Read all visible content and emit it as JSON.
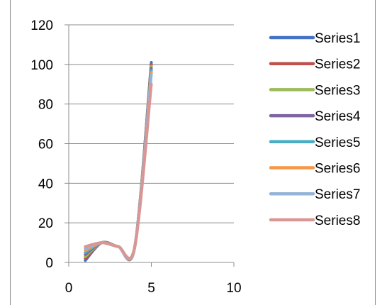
{
  "page_title_fragment": "",
  "chart_data": {
    "type": "scatter",
    "title": "",
    "xlabel": "",
    "ylabel": "",
    "xlim": [
      0,
      10
    ],
    "ylim": [
      0,
      120
    ],
    "xticks": [
      "0",
      "5",
      "10"
    ],
    "yticks": [
      "0",
      "20",
      "40",
      "60",
      "80",
      "100",
      "120"
    ],
    "grid": "horizontal",
    "legend": "right",
    "x": [
      1,
      2,
      3,
      4,
      5
    ],
    "series": [
      {
        "name": "Series1",
        "color": "#4472c4",
        "values": [
          1,
          10,
          8,
          8,
          101
        ]
      },
      {
        "name": "Series2",
        "color": "#c0504d",
        "values": [
          2,
          10,
          8,
          8,
          100
        ]
      },
      {
        "name": "Series3",
        "color": "#9bbb59",
        "values": [
          3,
          10,
          8,
          8,
          99
        ]
      },
      {
        "name": "Series4",
        "color": "#8064a2",
        "values": [
          4,
          10,
          8,
          8,
          98
        ]
      },
      {
        "name": "Series5",
        "color": "#4bacc6",
        "values": [
          5,
          10,
          8,
          8,
          97
        ]
      },
      {
        "name": "Series6",
        "color": "#f79646",
        "values": [
          6,
          10,
          8,
          8,
          96
        ]
      },
      {
        "name": "Series7",
        "color": "#95b3d7",
        "values": [
          7,
          10,
          8,
          8,
          95
        ]
      },
      {
        "name": "Series8",
        "color": "#d99694",
        "values": [
          8,
          10,
          8,
          8,
          90
        ]
      }
    ]
  }
}
